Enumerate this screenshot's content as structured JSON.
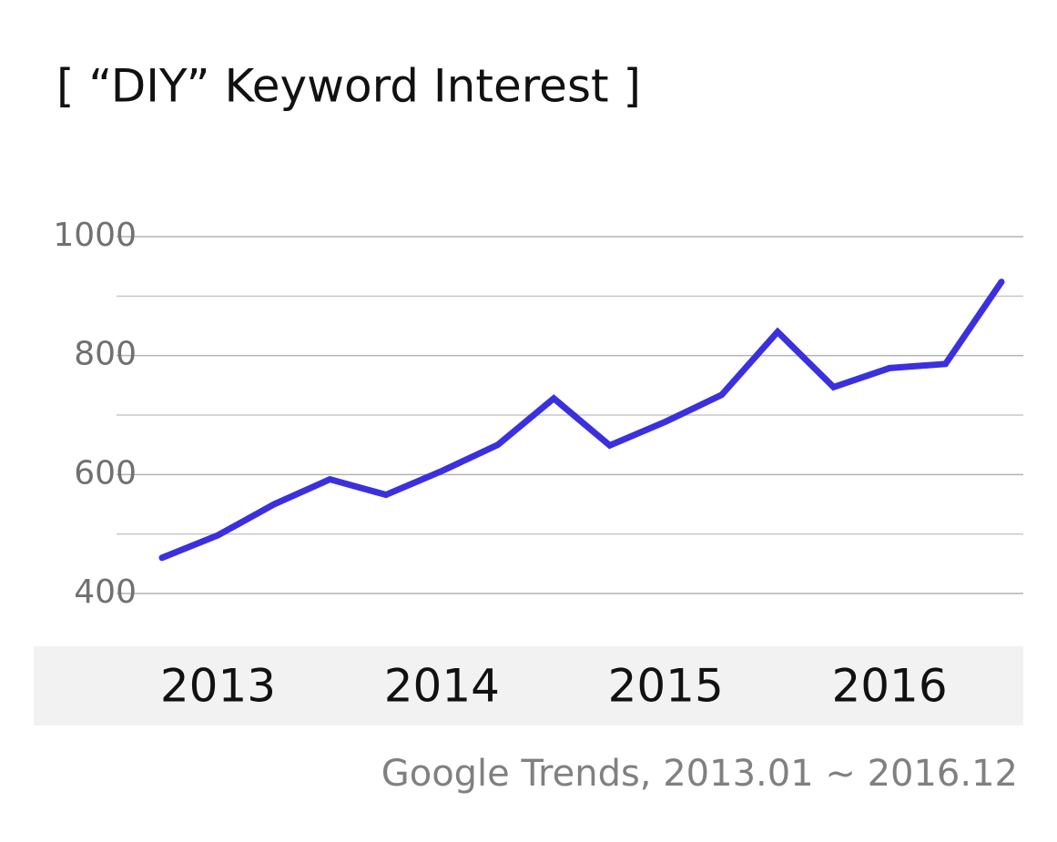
{
  "chart_data": {
    "type": "line",
    "title": "[ “DIY” Keyword Interest ]",
    "categories": [
      "2013",
      null,
      null,
      null,
      "2014",
      null,
      null,
      null,
      "2015",
      null,
      null,
      null,
      "2016",
      null,
      null,
      null
    ],
    "series": [
      {
        "name": "DIY",
        "color": "#3b30dd",
        "values": [
          460,
          498,
          550,
          592,
          566,
          606,
          650,
          728,
          649,
          689,
          734,
          840,
          747,
          779,
          786,
          924
        ]
      }
    ],
    "ylim": [
      400,
      1000
    ],
    "yticks": [
      400,
      600,
      800,
      1000
    ],
    "minor_yticks": [
      500,
      700,
      900
    ],
    "grid": true,
    "source": "Google Trends, 2013.01 ~ 2016.12"
  }
}
